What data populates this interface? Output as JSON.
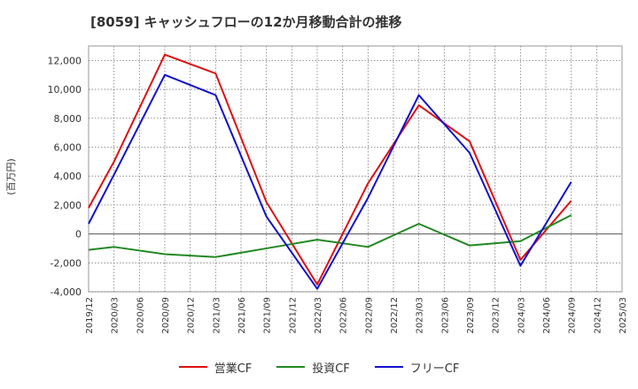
{
  "chart_data": {
    "type": "line",
    "title": "[8059]  キャッシュフローの12か月移動合計の推移",
    "ylabel": "(百万円)",
    "xlabel": "",
    "ylim": [
      -4000,
      13000
    ],
    "yticks": [
      -4000,
      -2000,
      0,
      2000,
      4000,
      6000,
      8000,
      10000,
      12000
    ],
    "ytick_labels": [
      "-4,000",
      "-2,000",
      "0",
      "2,000",
      "4,000",
      "6,000",
      "8,000",
      "10,000",
      "12,000"
    ],
    "categories": [
      "2019/12",
      "2020/03",
      "2020/06",
      "2020/09",
      "2020/12",
      "2021/03",
      "2021/06",
      "2021/09",
      "2021/12",
      "2022/03",
      "2022/06",
      "2022/09",
      "2022/12",
      "2023/03",
      "2023/06",
      "2023/09",
      "2023/12",
      "2024/03",
      "2024/06",
      "2024/09",
      "2024/12",
      "2025/03"
    ],
    "grid": true,
    "legend_position": "bottom",
    "series": [
      {
        "name": "営業CF",
        "color": "#dd1111",
        "values": [
          1800,
          5000,
          null,
          12400,
          null,
          11100,
          null,
          2200,
          null,
          -3500,
          null,
          3500,
          null,
          8900,
          null,
          6400,
          null,
          -1800,
          null,
          2300,
          null,
          null
        ]
      },
      {
        "name": "投資CF",
        "color": "#228822",
        "values": [
          -1100,
          -900,
          null,
          -1400,
          null,
          -1600,
          null,
          -1000,
          null,
          -400,
          null,
          -900,
          null,
          700,
          null,
          -800,
          null,
          -500,
          null,
          1300,
          null,
          null
        ]
      },
      {
        "name": "フリーCF",
        "color": "#1111cc",
        "values": [
          700,
          4100,
          null,
          11000,
          null,
          9600,
          null,
          1200,
          null,
          -3800,
          null,
          2500,
          null,
          9600,
          null,
          5600,
          null,
          -2200,
          null,
          3600,
          null,
          null
        ]
      }
    ]
  }
}
